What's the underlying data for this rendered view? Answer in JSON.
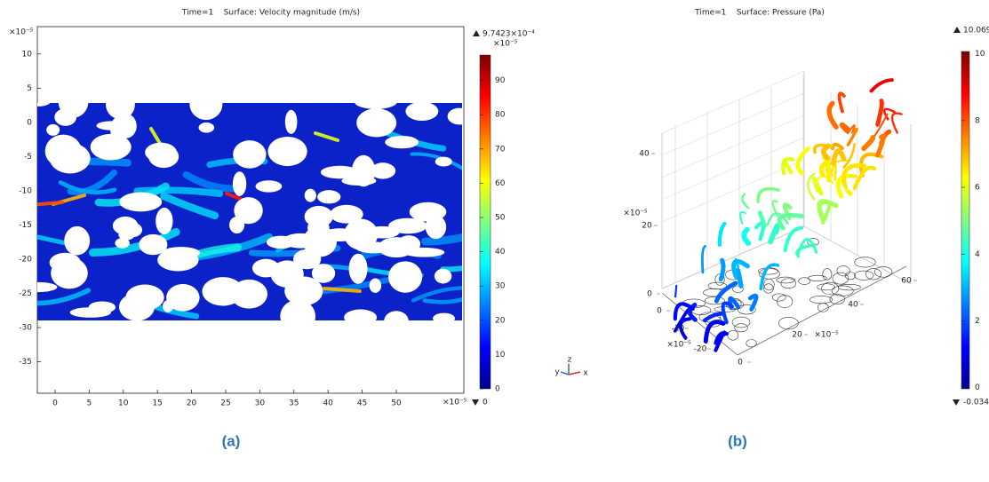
{
  "panel_a": {
    "title": "Time=1    Surface: Velocity magnitude (m/s)",
    "xlim": [
      -2.6,
      59.9
    ],
    "ylim": [
      -39.6,
      14
    ],
    "xticks": [
      0,
      5,
      10,
      15,
      20,
      25,
      30,
      35,
      40,
      45,
      50
    ],
    "yticks": [
      10,
      5,
      0,
      -5,
      -10,
      -15,
      -20,
      -25,
      -30,
      -35
    ],
    "x_exponent": "×10⁻⁵",
    "y_exponent": "×10⁻⁵",
    "colorbar": {
      "min": 0,
      "max": {
        "value": 97.423,
        "label": "9.7423×10⁻⁴"
      },
      "exponent": "×10⁻⁵",
      "ticks": [
        0,
        10,
        20,
        30,
        40,
        50,
        60,
        70,
        80,
        90
      ]
    },
    "caption": "(a)"
  },
  "panel_b": {
    "title": "Time=1    Surface: Pressure (Pa)",
    "z_ticks": [
      0,
      20,
      40
    ],
    "z_exponent": "×10⁻⁵",
    "y_ticks": [
      0,
      -10,
      -20
    ],
    "y_exponent": "×10⁻⁵",
    "x_ticks": [
      0,
      20,
      40,
      60
    ],
    "x_exponent": "×10⁻⁵",
    "triad": [
      "y",
      "z",
      "x"
    ],
    "colorbar": {
      "min": -0.034,
      "max": 10.069,
      "ticks": [
        0,
        2,
        4,
        6,
        8,
        10
      ]
    },
    "caption": "(b)"
  }
}
